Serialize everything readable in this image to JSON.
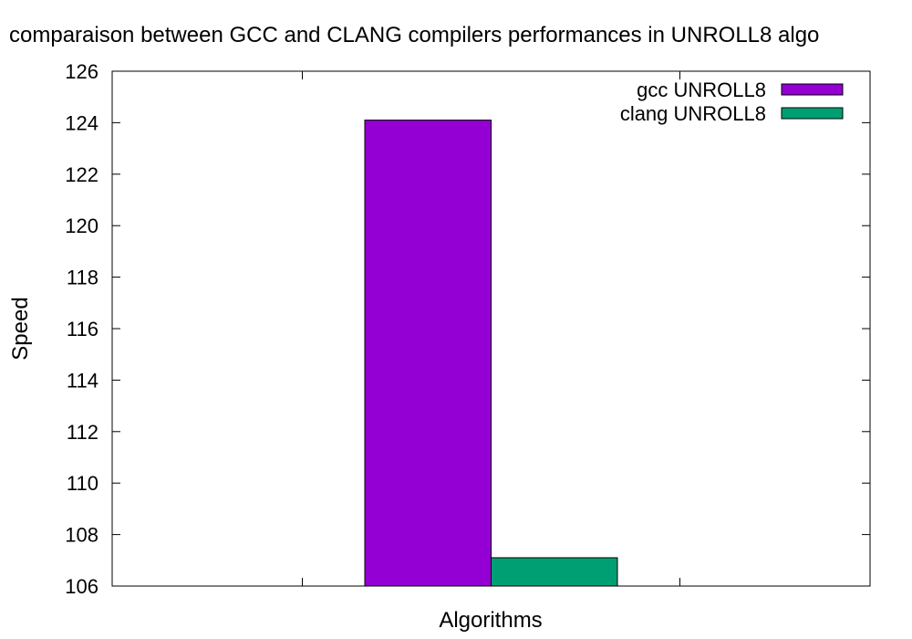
{
  "chart_data": {
    "type": "bar",
    "title": "comparaison between GCC and CLANG compilers performances in UNROLL8 algo",
    "xlabel": "Algorithms",
    "ylabel": "Speed",
    "ylim": [
      106,
      126
    ],
    "yticks": [
      "106",
      "108",
      "110",
      "112",
      "114",
      "116",
      "118",
      "120",
      "122",
      "124",
      "126"
    ],
    "categories": [
      ""
    ],
    "series": [
      {
        "name": "gcc UNROLL8",
        "color": "#9400d3",
        "values": [
          124.1
        ]
      },
      {
        "name": "clang UNROLL8",
        "color": "#009e73",
        "values": [
          107.1
        ]
      }
    ],
    "legend": "top-right",
    "grid": false
  }
}
